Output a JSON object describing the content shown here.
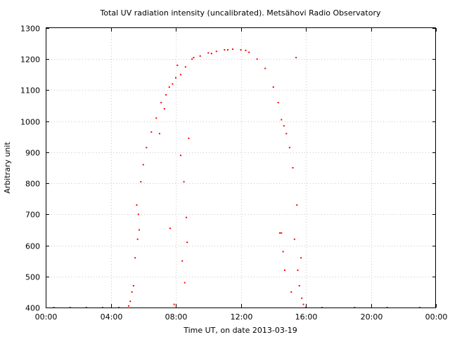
{
  "chart_data": {
    "type": "scatter",
    "title": "Total UV radiation intensity (uncalibrated). Metsähovi Radio Observatory",
    "xlabel": "Time UT, on date 2013-03-19",
    "ylabel": "Arbitrary unit",
    "xlim_hours": [
      0,
      24
    ],
    "ylim": [
      400,
      1300
    ],
    "x_tick_labels": [
      "00:00",
      "04:00",
      "08:00",
      "12:00",
      "16:00",
      "20:00",
      "00:00"
    ],
    "y_tick_labels": [
      "400",
      "500",
      "600",
      "700",
      "800",
      "900",
      "1000",
      "1100",
      "1200",
      "1300"
    ],
    "grid": true,
    "marker_color": "#ff0000",
    "series": [
      {
        "name": "",
        "x_hours": [
          0.5,
          1.5,
          2.5,
          3.5,
          4.5,
          5.1,
          5.3,
          5.5,
          5.7,
          5.85,
          6.0,
          6.2,
          6.5,
          6.8,
          7.1,
          7.4,
          7.6,
          7.8,
          8.0,
          8.3,
          8.6,
          9.0,
          9.5,
          10.0,
          10.5,
          11.0,
          11.5,
          12.0,
          12.5,
          13.0,
          13.5,
          14.0,
          14.3,
          14.5,
          14.65,
          14.8,
          15.0,
          15.2,
          15.45,
          15.7,
          16.0,
          17.0,
          19.0,
          21.0,
          23.0,
          5.6,
          5.75,
          5.65,
          7.0,
          7.65,
          8.3,
          8.5,
          8.65,
          8.7,
          8.8,
          9.1,
          10.2,
          11.2,
          12.3,
          14.5,
          14.6,
          14.7,
          15.1,
          15.3,
          15.5,
          15.6,
          15.75,
          15.85,
          7.9,
          8.4,
          8.55,
          5.4,
          14.4,
          15.4,
          5.2,
          7.3,
          8.1
        ],
        "y": [
          400,
          400,
          400,
          400,
          400,
          405,
          450,
          560,
          700,
          805,
          860,
          915,
          965,
          1010,
          1060,
          1085,
          1110,
          1120,
          1140,
          1150,
          1175,
          1200,
          1210,
          1220,
          1225,
          1230,
          1232,
          1230,
          1222,
          1200,
          1170,
          1110,
          1060,
          1005,
          985,
          960,
          915,
          850,
          730,
          560,
          400,
          400,
          400,
          400,
          400,
          730,
          650,
          620,
          960,
          655,
          890,
          805,
          690,
          610,
          945,
          1205,
          1218,
          1230,
          1228,
          640,
          580,
          520,
          450,
          620,
          520,
          470,
          430,
          410,
          410,
          550,
          480,
          470,
          640,
          1205,
          420,
          1040,
          1180
        ]
      }
    ]
  }
}
